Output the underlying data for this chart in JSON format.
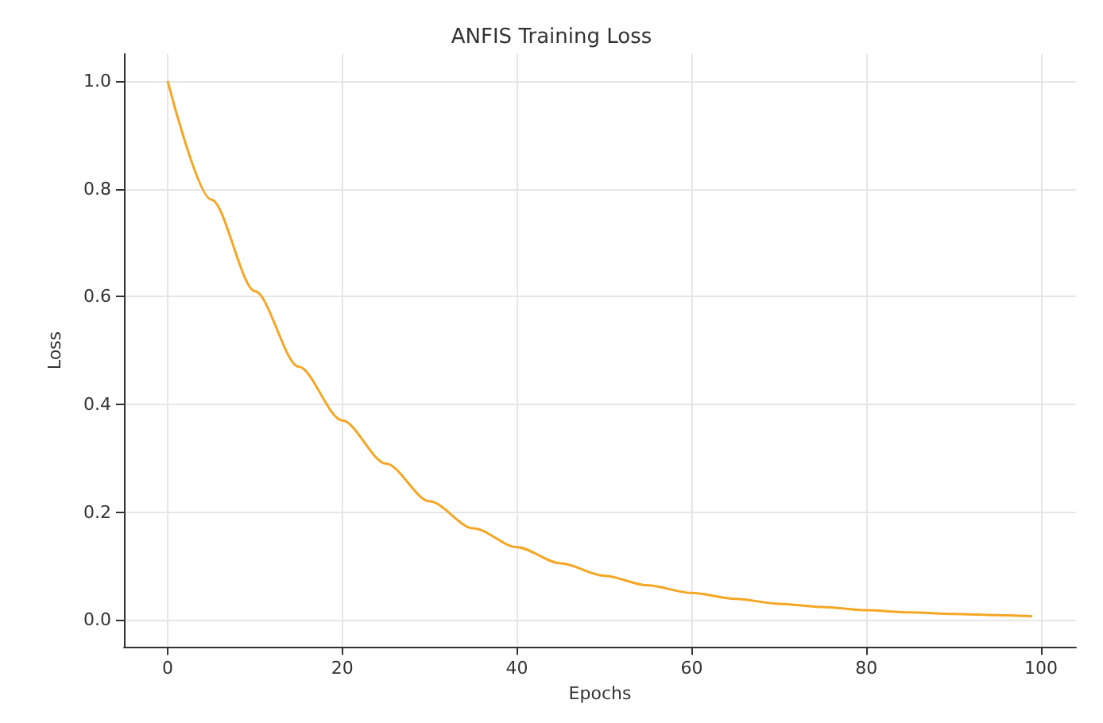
{
  "chart_data": {
    "type": "line",
    "title": "ANFIS Training Loss",
    "xlabel": "Epochs",
    "ylabel": "Loss",
    "x": [
      0,
      5,
      10,
      15,
      20,
      25,
      30,
      35,
      40,
      45,
      50,
      55,
      60,
      65,
      70,
      75,
      80,
      85,
      90,
      95,
      99
    ],
    "series": [
      {
        "color": "#f5a623",
        "values": [
          1.0,
          0.78,
          0.61,
          0.47,
          0.37,
          0.29,
          0.22,
          0.17,
          0.135,
          0.105,
          0.082,
          0.064,
          0.05,
          0.039,
          0.03,
          0.024,
          0.018,
          0.014,
          0.011,
          0.009,
          0.007
        ]
      }
    ],
    "xlim": [
      -5,
      104
    ],
    "ylim": [
      -0.05,
      1.05
    ],
    "xticks": [
      0,
      20,
      40,
      60,
      80,
      100
    ],
    "yticks": [
      {
        "value": 0,
        "label": "0.0"
      },
      {
        "value": 0.2,
        "label": "0.2"
      },
      {
        "value": 0.4,
        "label": "0.4"
      },
      {
        "value": 0.6,
        "label": "0.6"
      },
      {
        "value": 0.8,
        "label": "0.8"
      },
      {
        "value": 1,
        "label": "1.0"
      }
    ],
    "grid": true,
    "marker": "none",
    "line_style": "solid"
  }
}
